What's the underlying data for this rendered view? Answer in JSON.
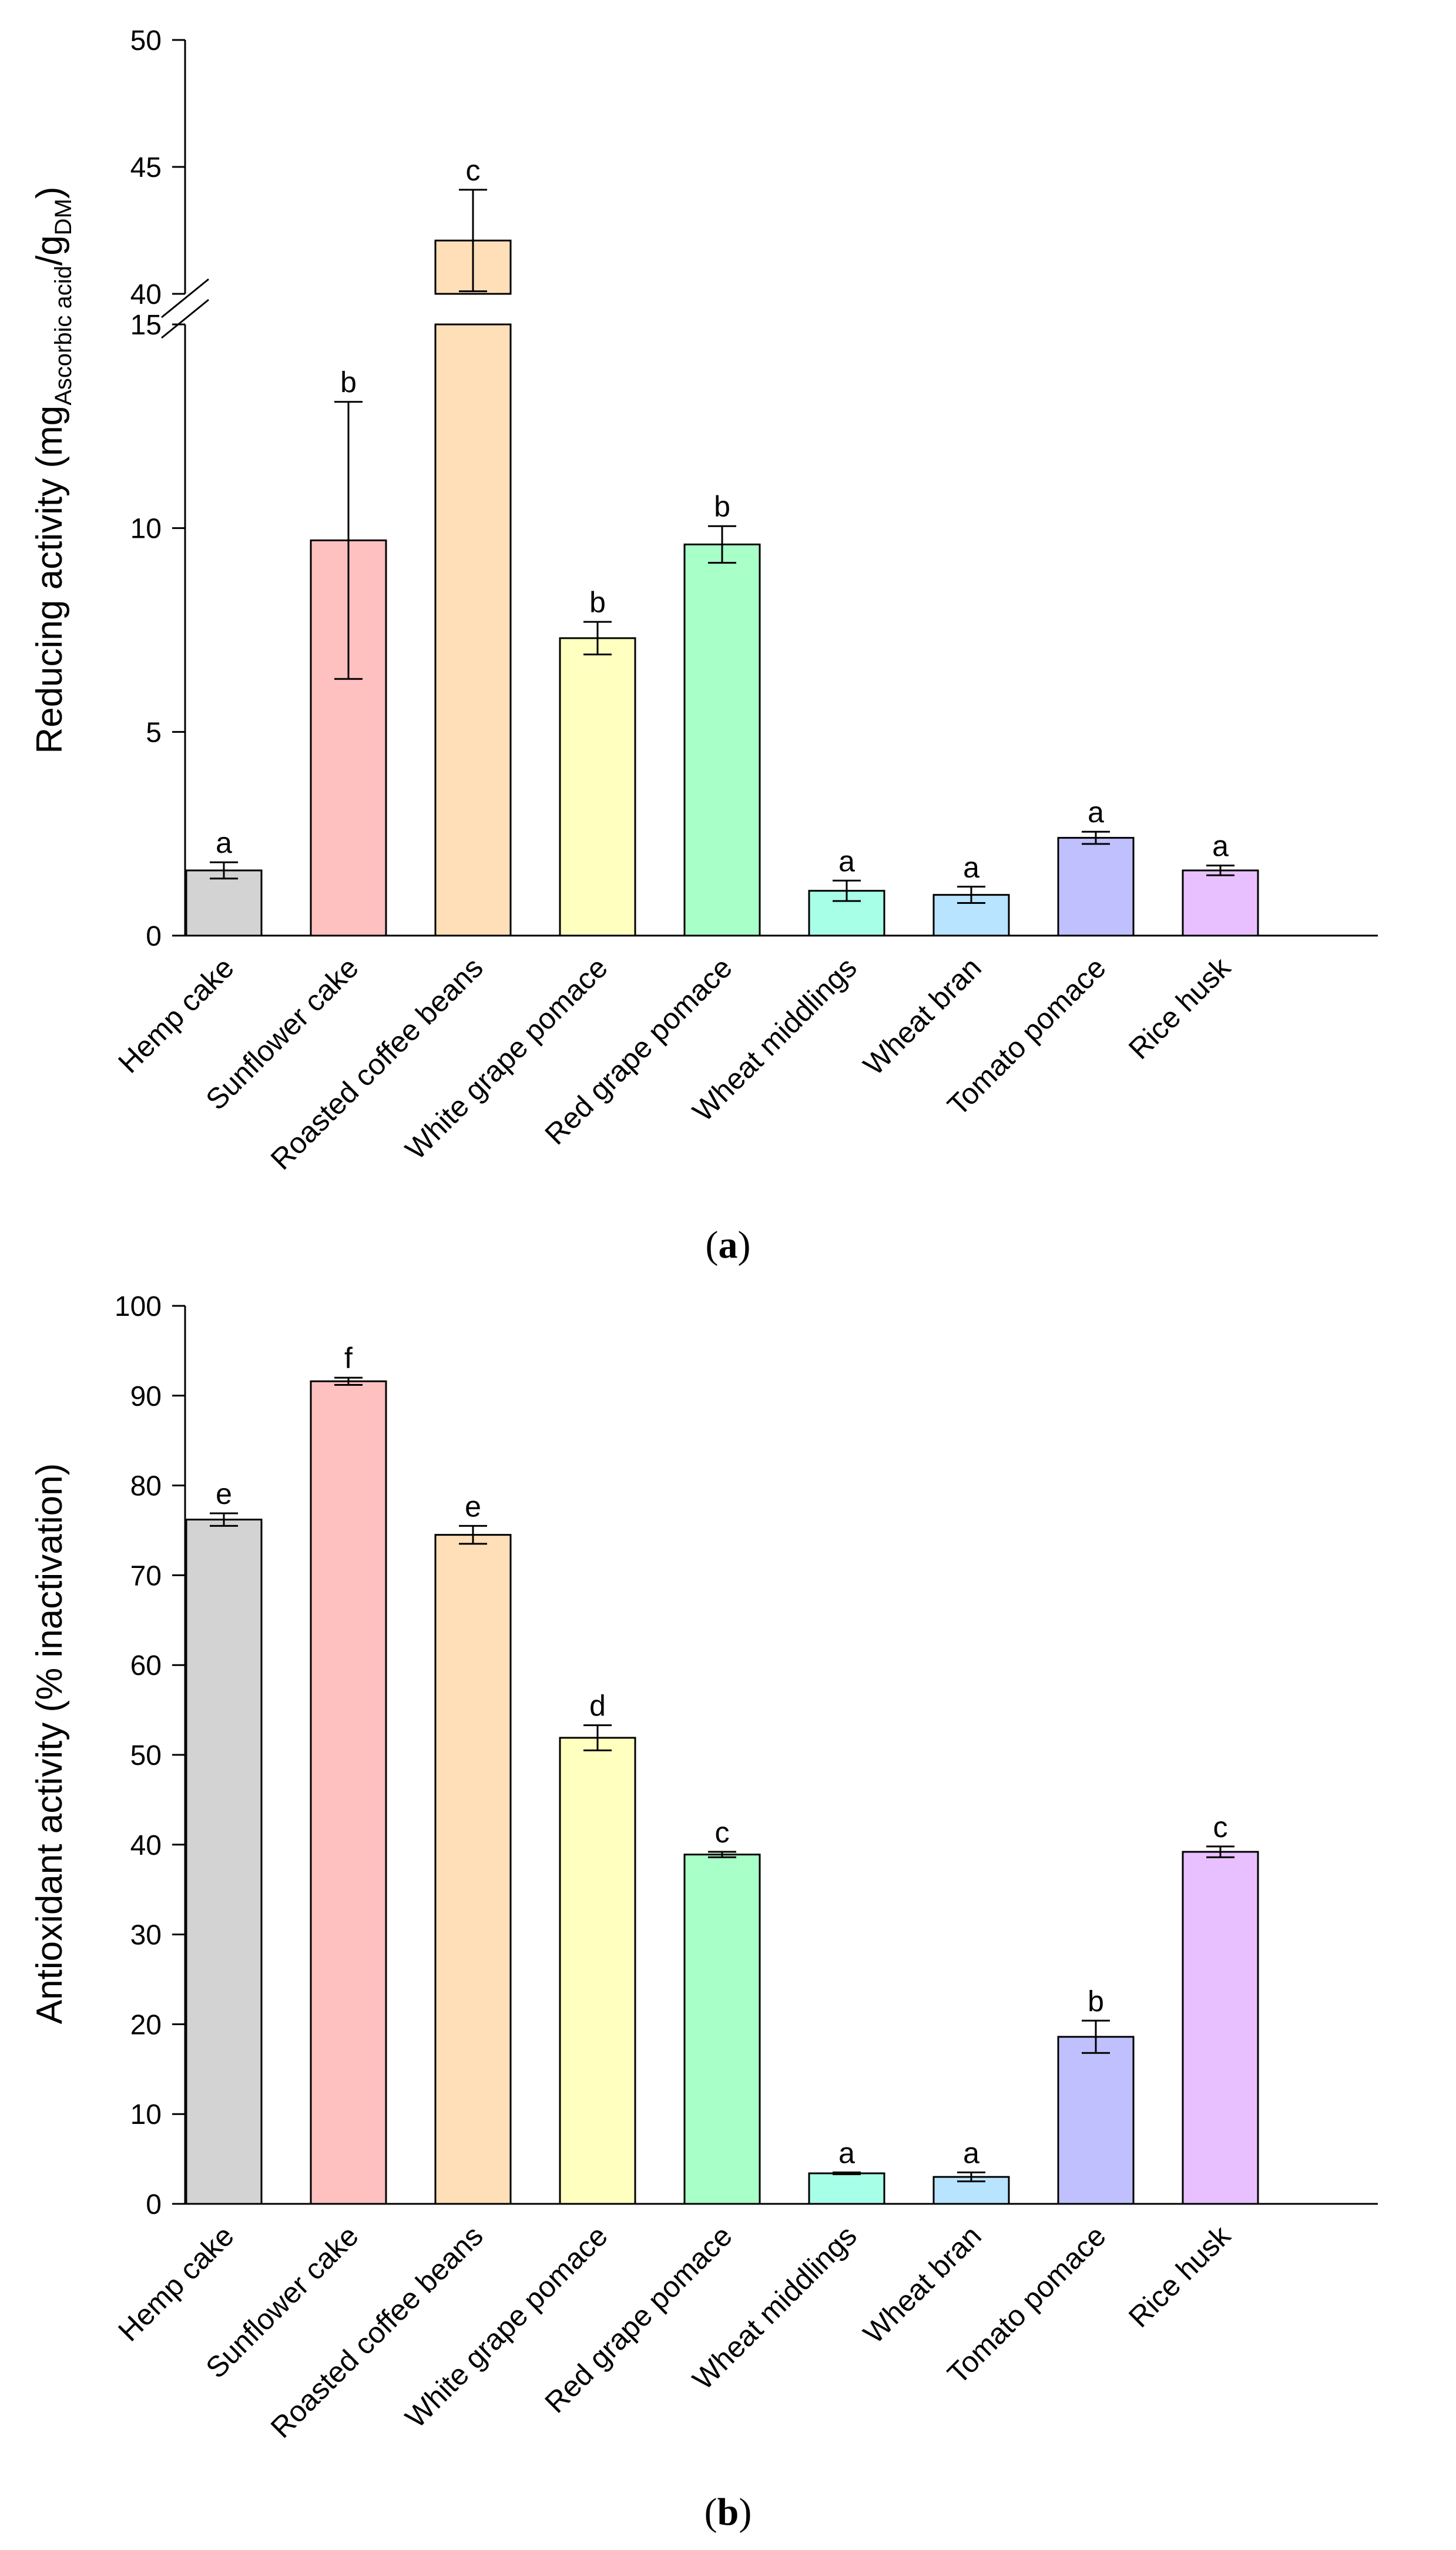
{
  "chart_data": [
    {
      "type": "bar",
      "panel_label": "a",
      "ylabel": "Reducing activity (mg",
      "ylabel_sub1": "Ascorbic acid",
      "ylabel_mid": "/g",
      "ylabel_sub2": "DM",
      "ylabel_end": ")",
      "categories": [
        "Hemp cake",
        "Sunflower cake",
        "Roasted coffee beans",
        "White grape pomace",
        "Red grape pomace",
        "Wheat middlings",
        "Wheat bran",
        "Tomato pomace",
        "Rice husk"
      ],
      "values": [
        1.6,
        9.7,
        42.1,
        7.3,
        9.6,
        1.1,
        1.0,
        2.4,
        1.6
      ],
      "errors": [
        0.2,
        3.4,
        2.0,
        0.4,
        0.45,
        0.25,
        0.2,
        0.15,
        0.12
      ],
      "letters": [
        "a",
        "b",
        "c",
        "b",
        "b",
        "a",
        "a",
        "a",
        "a"
      ],
      "colors": [
        "#d3d3d3",
        "#ffc0c0",
        "#ffdfb8",
        "#ffffc0",
        "#a8ffc8",
        "#a8ffe8",
        "#b8e4ff",
        "#c0c0ff",
        "#e8c0ff"
      ],
      "axis_break": {
        "lower_ylim": [
          0,
          15
        ],
        "upper_ylim": [
          40,
          50
        ]
      },
      "yticks_lower": [
        0,
        5,
        10,
        15
      ],
      "yticks_upper": [
        40,
        45,
        50
      ],
      "ytick_labels_lower": [
        "0",
        "5",
        "10",
        "15"
      ],
      "ytick_labels_upper": [
        "40",
        "45",
        "50"
      ]
    },
    {
      "type": "bar",
      "panel_label": "b",
      "ylabel": "Antioxidant activity (% inactivation)",
      "categories": [
        "Hemp cake",
        "Sunflower cake",
        "Roasted coffee beans",
        "White grape pomace",
        "Red grape pomace",
        "Wheat middlings",
        "Wheat bran",
        "Tomato pomace",
        "Rice husk"
      ],
      "values": [
        76.2,
        91.6,
        74.5,
        51.9,
        38.9,
        3.4,
        3.0,
        18.6,
        39.2
      ],
      "errors": [
        0.7,
        0.4,
        1.0,
        1.4,
        0.3,
        0.1,
        0.5,
        1.8,
        0.6
      ],
      "letters": [
        "e",
        "f",
        "e",
        "d",
        "c",
        "a",
        "a",
        "b",
        "c"
      ],
      "colors": [
        "#d3d3d3",
        "#ffc0c0",
        "#ffdfb8",
        "#ffffc0",
        "#a8ffc8",
        "#a8ffe8",
        "#b8e4ff",
        "#c0c0ff",
        "#e8c0ff"
      ],
      "ylim": [
        0,
        100
      ],
      "yticks": [
        0,
        10,
        20,
        30,
        40,
        50,
        60,
        70,
        80,
        90,
        100
      ],
      "ytick_labels": [
        "0",
        "10",
        "20",
        "30",
        "40",
        "50",
        "60",
        "70",
        "80",
        "90",
        "100"
      ]
    }
  ]
}
